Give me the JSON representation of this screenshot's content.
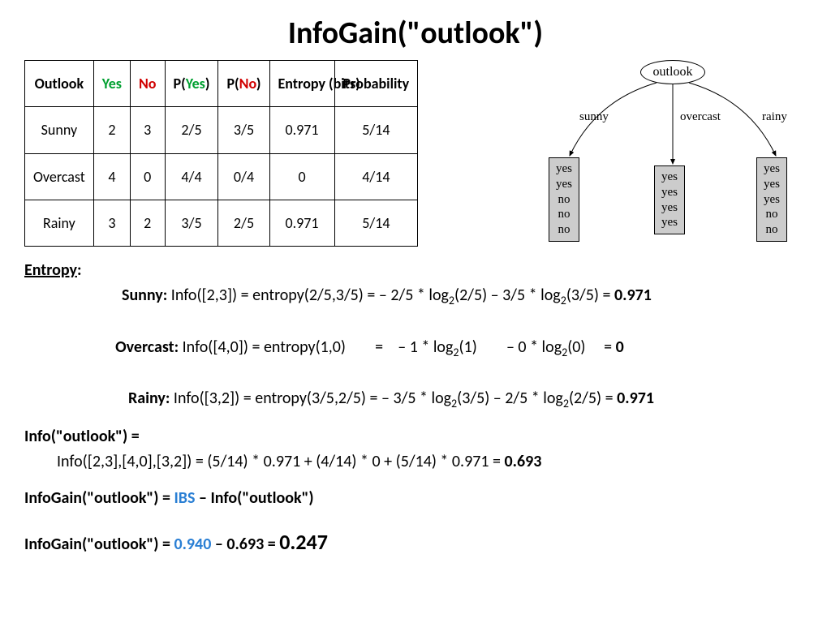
{
  "title": "InfoGain(\"outlook\")",
  "table": {
    "headers": {
      "outlook": "Outlook",
      "yes": "Yes",
      "no": "No",
      "pyes_pre": "P(",
      "pyes_mid": "Yes",
      "pyes_post": ")",
      "pno_pre": "P(",
      "pno_mid": "No",
      "pno_post": ")",
      "entropy": "Entropy (bits)",
      "prob": "Probability"
    },
    "rows": [
      {
        "outlook": "Sunny",
        "yes": "2",
        "no": "3",
        "pyes": "2/5",
        "pno": "3/5",
        "entropy": "0.971",
        "prob": "5/14"
      },
      {
        "outlook": "Overcast",
        "yes": "4",
        "no": "0",
        "pyes": "4/4",
        "pno": "0/4",
        "entropy": "0",
        "prob": "4/14"
      },
      {
        "outlook": "Rainy",
        "yes": "3",
        "no": "2",
        "pyes": "3/5",
        "pno": "2/5",
        "entropy": "0.971",
        "prob": "5/14"
      }
    ],
    "colors": {
      "yes": "#00a030",
      "no": "#d00000",
      "border": "#000000"
    }
  },
  "tree": {
    "root": "outlook",
    "branches": [
      "sunny",
      "overcast",
      "rainy"
    ],
    "leaves": [
      [
        "yes",
        "yes",
        "no",
        "no",
        "no"
      ],
      [
        "yes",
        "yes",
        "yes",
        "yes"
      ],
      [
        "yes",
        "yes",
        "yes",
        "no",
        "no"
      ]
    ],
    "leaf_bg": "#cccccc"
  },
  "entropy": {
    "heading": "Entropy",
    "lines": {
      "sunny_label": "Sunny:",
      "sunny_eq_a": " Info([2,3]) = entropy(2/5,3/5) = – 2/5 * log",
      "sunny_eq_b": "(2/5) – 3/5 * log",
      "sunny_eq_c": "(3/5) = ",
      "sunny_res": "0.971",
      "overcast_label": "Overcast:",
      "overcast_eq_a": " Info([4,0]) = entropy(1,0)        =    – 1 * log",
      "overcast_eq_b": "(1)        – 0 * log",
      "overcast_eq_c": "(0)     = ",
      "overcast_res": "0",
      "rainy_label": "Rainy:",
      "rainy_eq_a": " Info([3,2]) = entropy(3/5,2/5) = – 3/5 * log",
      "rainy_eq_b": "(3/5) – 2/5 * log",
      "rainy_eq_c": "(2/5) = ",
      "rainy_res": "0.971",
      "sub": "2"
    }
  },
  "info": {
    "line1": "Info(\"outlook\") =",
    "line2": "Info([2,3],[4,0],[3,2]) = (5/14) * 0.971 + (4/14) * 0 + (5/14) * 0.971 = ",
    "line2_res": "0.693",
    "line3a": "InfoGain(\"outlook\") = ",
    "line3_ibs": "IBS",
    "line3b": " – Info(\"outlook\")",
    "line4a": "InfoGain(\"outlook\") = ",
    "line4_ibs": "0.940",
    "line4b": " – 0.693 = ",
    "line4_res": "0.247"
  }
}
